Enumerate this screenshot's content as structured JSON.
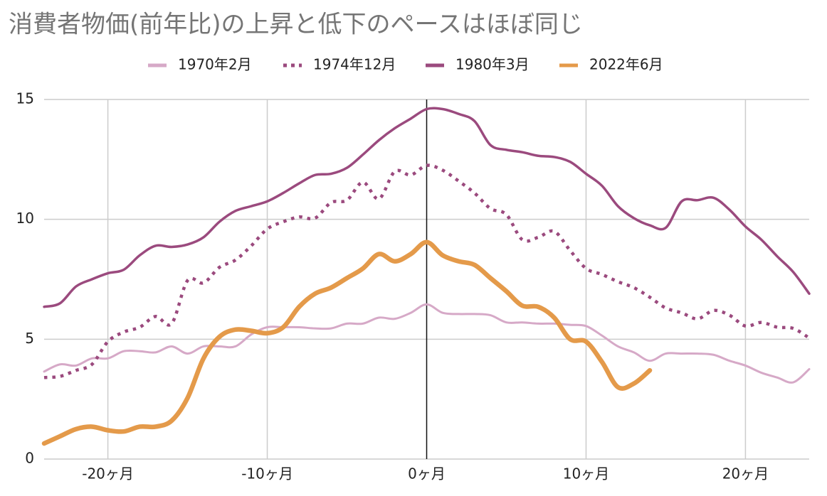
{
  "chart_data": {
    "type": "line",
    "title": "消費者物価(前年比)の上昇と低下のペースはほぼ同じ",
    "x": [
      -24,
      -23,
      -22,
      -21,
      -20,
      -19,
      -18,
      -17,
      -16,
      -15,
      -14,
      -13,
      -12,
      -11,
      -10,
      -9,
      -8,
      -7,
      -6,
      -5,
      -4,
      -3,
      -2,
      -1,
      0,
      1,
      2,
      3,
      4,
      5,
      6,
      7,
      8,
      9,
      10,
      11,
      12,
      13,
      14,
      15,
      16,
      17,
      18,
      19,
      20,
      21,
      22,
      23,
      24
    ],
    "series": [
      {
        "name": "1970年2月",
        "color": "#d6a9c7",
        "values": [
          3.65,
          3.95,
          3.9,
          4.2,
          4.2,
          4.5,
          4.5,
          4.45,
          4.7,
          4.4,
          4.7,
          4.7,
          4.7,
          5.2,
          5.5,
          5.5,
          5.5,
          5.45,
          5.45,
          5.65,
          5.65,
          5.9,
          5.85,
          6.1,
          6.45,
          6.1,
          6.05,
          6.05,
          6.0,
          5.7,
          5.7,
          5.65,
          5.65,
          5.6,
          5.55,
          5.15,
          4.7,
          4.45,
          4.1,
          4.4,
          4.4,
          4.4,
          4.35,
          4.1,
          3.9,
          3.6,
          3.4,
          3.2,
          3.75
        ]
      },
      {
        "name": "1974年12月",
        "color": "#9b4a7e",
        "dash": "dotted",
        "values": [
          3.4,
          3.45,
          3.7,
          3.95,
          4.9,
          5.3,
          5.5,
          5.95,
          5.65,
          7.45,
          7.35,
          8.0,
          8.3,
          8.9,
          9.6,
          9.9,
          10.1,
          10.05,
          10.7,
          10.8,
          11.55,
          10.85,
          12.0,
          11.85,
          12.25,
          12.05,
          11.6,
          11.1,
          10.45,
          10.2,
          9.15,
          9.25,
          9.5,
          8.7,
          7.95,
          7.7,
          7.4,
          7.15,
          6.75,
          6.3,
          6.1,
          5.85,
          6.2,
          6.0,
          5.55,
          5.7,
          5.5,
          5.45,
          5.05
        ]
      },
      {
        "name": "1980年3月",
        "color": "#9b4a7e",
        "values": [
          6.35,
          6.5,
          7.2,
          7.5,
          7.75,
          7.9,
          8.5,
          8.9,
          8.85,
          8.95,
          9.25,
          9.9,
          10.35,
          10.55,
          10.75,
          11.1,
          11.5,
          11.85,
          11.9,
          12.15,
          12.7,
          13.3,
          13.8,
          14.2,
          14.6,
          14.6,
          14.4,
          14.1,
          13.1,
          12.9,
          12.8,
          12.65,
          12.6,
          12.4,
          11.9,
          11.4,
          10.55,
          10.05,
          9.75,
          9.65,
          10.75,
          10.8,
          10.9,
          10.4,
          9.7,
          9.15,
          8.45,
          7.8,
          6.9
        ]
      },
      {
        "name": "2022年6月",
        "color": "#e49a4a",
        "values": [
          0.65,
          0.95,
          1.25,
          1.35,
          1.2,
          1.15,
          1.35,
          1.35,
          1.6,
          2.55,
          4.2,
          5.1,
          5.4,
          5.35,
          5.25,
          5.5,
          6.35,
          6.9,
          7.15,
          7.55,
          7.95,
          8.55,
          8.25,
          8.55,
          9.05,
          8.5,
          8.25,
          8.1,
          7.55,
          7.0,
          6.4,
          6.35,
          5.9,
          5.0,
          4.9,
          4.05,
          3.0,
          3.15,
          3.7,
          null,
          null,
          null,
          null,
          null,
          null,
          null,
          null,
          null,
          null
        ]
      }
    ],
    "xlim": [
      -24,
      24
    ],
    "xticks": [
      {
        "value": -20,
        "label": "-20ヶ月"
      },
      {
        "value": -10,
        "label": "-10ヶ月"
      },
      {
        "value": 0,
        "label": "0ヶ月"
      },
      {
        "value": 10,
        "label": "10ヶ月"
      },
      {
        "value": 20,
        "label": "20ヶ月"
      }
    ],
    "ylim": [
      0,
      15
    ],
    "yticks": [
      0,
      5,
      10,
      15
    ],
    "grid": true,
    "legend": "top"
  }
}
